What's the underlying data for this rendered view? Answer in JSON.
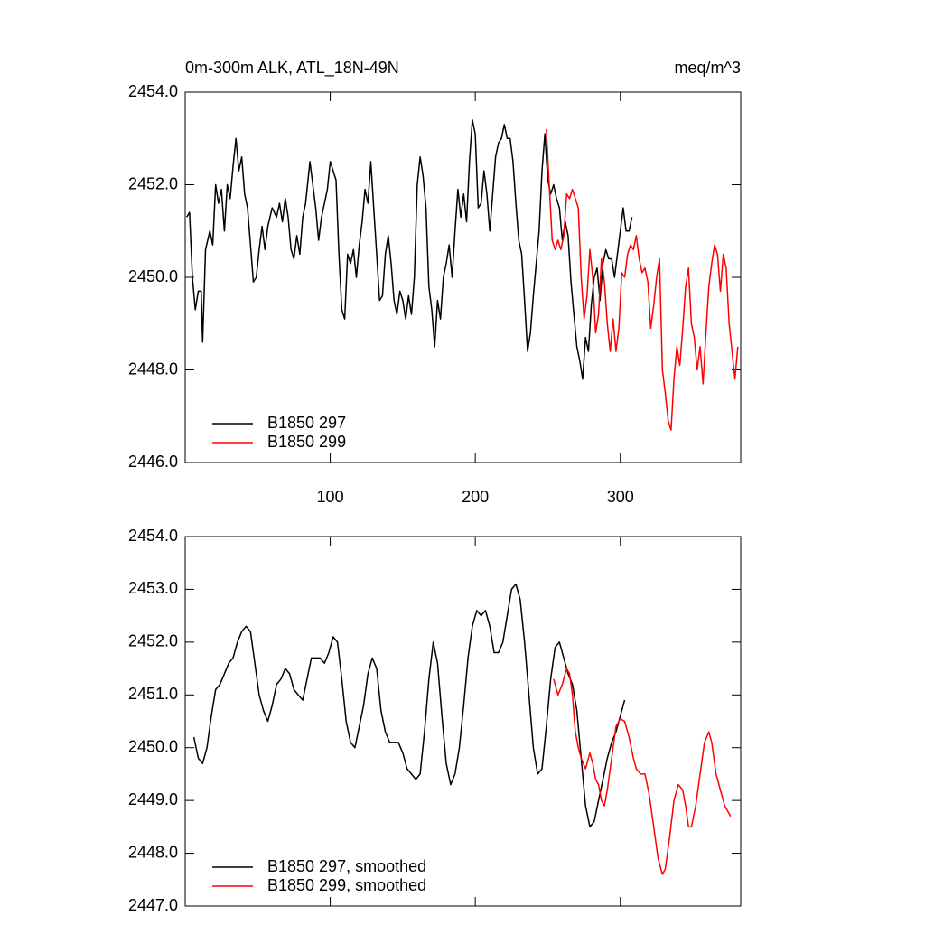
{
  "chart_data": [
    {
      "type": "line",
      "title": "0m-300m ALK, ATL_18N-49N",
      "units": "meq/m^3",
      "xlim": [
        0,
        383
      ],
      "xticks": [
        100,
        200,
        300
      ],
      "show_xtick_labels": true,
      "ylim": [
        2446,
        2454
      ],
      "yticks": [
        {
          "value": 2446,
          "label": "2446.0"
        },
        {
          "value": 2448,
          "label": "2448.0"
        },
        {
          "value": 2450,
          "label": "2450.0"
        },
        {
          "value": 2452,
          "label": "2452.0"
        },
        {
          "value": 2454,
          "label": "2454.0"
        }
      ],
      "legend": "lower left",
      "series": [
        {
          "name": "B1850 297",
          "color": "#000000",
          "x": [
            1,
            3,
            5,
            7,
            9,
            11,
            12,
            14,
            17,
            19,
            21,
            23,
            25,
            27,
            29,
            31,
            33,
            35,
            37,
            39,
            41,
            43,
            45,
            47,
            49,
            51,
            53,
            55,
            57,
            60,
            63,
            65,
            67,
            69,
            71,
            73,
            75,
            77,
            79,
            81,
            83,
            86,
            88,
            90,
            92,
            94,
            96,
            98,
            100,
            102,
            104,
            106,
            108,
            110,
            112,
            114,
            116,
            118,
            120,
            122,
            124,
            126,
            128,
            130,
            132,
            134,
            136,
            138,
            140,
            142,
            144,
            146,
            148,
            150,
            152,
            154,
            156,
            158,
            160,
            162,
            164,
            166,
            168,
            170,
            172,
            174,
            176,
            178,
            180,
            182,
            184,
            186,
            188,
            190,
            192,
            194,
            196,
            198,
            200,
            202,
            204,
            206,
            208,
            210,
            212,
            214,
            216,
            218,
            220,
            222,
            224,
            226,
            228,
            230,
            232,
            234,
            236,
            238,
            240,
            242,
            244,
            246,
            248,
            250,
            252,
            254,
            256,
            258,
            260,
            262,
            264,
            266,
            268,
            270,
            272,
            274,
            276,
            278,
            280,
            282,
            284,
            286,
            288,
            290,
            292,
            294,
            296,
            298,
            300,
            302,
            304,
            306,
            308
          ],
          "values": [
            2451.3,
            2451.4,
            2450.0,
            2449.3,
            2449.7,
            2449.7,
            2448.6,
            2450.6,
            2451.0,
            2450.7,
            2452.0,
            2451.6,
            2451.9,
            2451.0,
            2452.0,
            2451.7,
            2452.4,
            2453.0,
            2452.3,
            2452.6,
            2451.8,
            2451.5,
            2450.7,
            2449.9,
            2450.0,
            2450.6,
            2451.1,
            2450.6,
            2451.1,
            2451.5,
            2451.3,
            2451.6,
            2451.2,
            2451.7,
            2451.3,
            2450.6,
            2450.4,
            2450.9,
            2450.5,
            2451.3,
            2451.6,
            2452.5,
            2452.0,
            2451.5,
            2450.8,
            2451.3,
            2451.6,
            2451.9,
            2452.5,
            2452.3,
            2452.1,
            2450.5,
            2449.3,
            2449.1,
            2450.5,
            2450.3,
            2450.6,
            2450.0,
            2450.7,
            2451.2,
            2451.9,
            2451.6,
            2452.5,
            2451.5,
            2450.5,
            2449.5,
            2449.6,
            2450.5,
            2450.9,
            2450.3,
            2449.5,
            2449.2,
            2449.7,
            2449.5,
            2449.1,
            2449.6,
            2449.2,
            2450.0,
            2452.0,
            2452.6,
            2452.2,
            2451.5,
            2449.8,
            2449.3,
            2448.5,
            2449.5,
            2449.1,
            2450.0,
            2450.3,
            2450.7,
            2450.0,
            2451.0,
            2451.9,
            2451.3,
            2451.8,
            2451.2,
            2452.5,
            2453.4,
            2453.1,
            2451.5,
            2451.6,
            2452.3,
            2451.8,
            2451.0,
            2451.8,
            2452.6,
            2452.9,
            2453.0,
            2453.3,
            2453.0,
            2453.0,
            2452.5,
            2451.6,
            2450.8,
            2450.5,
            2449.5,
            2448.4,
            2448.8,
            2449.6,
            2450.3,
            2451.0,
            2452.3,
            2453.1,
            2452.1,
            2451.8,
            2452.0,
            2451.7,
            2451.5,
            2450.8,
            2451.2,
            2450.9,
            2449.9,
            2449.2,
            2448.5,
            2448.2,
            2447.8,
            2448.7,
            2448.4,
            2449.4,
            2450.0,
            2450.2,
            2449.5,
            2450.3,
            2450.6,
            2450.4,
            2450.4,
            2450.0,
            2450.5,
            2451.0,
            2451.5,
            2451.0,
            2451.0,
            2451.3
          ]
        },
        {
          "name": "B1850 299",
          "color": "#ff0000",
          "x": [
            249,
            251,
            253,
            255,
            257,
            259,
            261,
            263,
            265,
            267,
            269,
            271,
            273,
            275,
            277,
            279,
            281,
            283,
            285,
            287,
            289,
            291,
            293,
            295,
            297,
            299,
            301,
            303,
            305,
            307,
            309,
            311,
            313,
            315,
            317,
            319,
            321,
            323,
            325,
            327,
            329,
            331,
            333,
            335,
            337,
            339,
            341,
            343,
            345,
            347,
            349,
            351,
            353,
            355,
            357,
            359,
            361,
            363,
            365,
            367,
            369,
            371,
            373,
            375,
            377,
            379,
            381
          ],
          "values": [
            2453.2,
            2452.0,
            2450.8,
            2450.6,
            2450.8,
            2450.6,
            2450.9,
            2451.8,
            2451.7,
            2451.9,
            2451.7,
            2451.5,
            2450.0,
            2449.1,
            2449.6,
            2450.6,
            2450.0,
            2448.8,
            2449.2,
            2450.4,
            2449.9,
            2449.0,
            2448.4,
            2449.1,
            2448.4,
            2448.9,
            2450.1,
            2450.0,
            2450.5,
            2450.7,
            2450.6,
            2450.9,
            2450.4,
            2450.1,
            2450.2,
            2449.9,
            2448.9,
            2449.4,
            2450.0,
            2450.4,
            2448.0,
            2447.5,
            2446.9,
            2446.7,
            2447.8,
            2448.5,
            2448.1,
            2448.9,
            2449.8,
            2450.2,
            2449.0,
            2448.7,
            2448.0,
            2448.5,
            2447.7,
            2448.8,
            2449.8,
            2450.3,
            2450.7,
            2450.5,
            2449.7,
            2450.5,
            2450.2,
            2449.0,
            2448.4,
            2447.8,
            2448.5
          ]
        }
      ]
    },
    {
      "type": "line",
      "xlim": [
        0,
        383
      ],
      "xticks": [
        100,
        200,
        300
      ],
      "show_xtick_labels": false,
      "ylim": [
        2447,
        2454
      ],
      "yticks": [
        {
          "value": 2447,
          "label": "2447.0"
        },
        {
          "value": 2448,
          "label": "2448.0"
        },
        {
          "value": 2449,
          "label": "2449.0"
        },
        {
          "value": 2450,
          "label": "2450.0"
        },
        {
          "value": 2451,
          "label": "2451.0"
        },
        {
          "value": 2452,
          "label": "2452.0"
        },
        {
          "value": 2453,
          "label": "2453.0"
        },
        {
          "value": 2454,
          "label": "2454.0"
        }
      ],
      "legend": "lower left",
      "series": [
        {
          "name": "B1850 297, smoothed",
          "color": "#000000",
          "x": [
            6,
            9,
            12,
            15,
            18,
            21,
            24,
            27,
            30,
            33,
            36,
            39,
            42,
            45,
            48,
            51,
            54,
            57,
            60,
            63,
            66,
            69,
            72,
            75,
            78,
            81,
            84,
            87,
            90,
            93,
            96,
            99,
            102,
            105,
            108,
            111,
            114,
            117,
            120,
            123,
            126,
            129,
            132,
            135,
            138,
            141,
            144,
            147,
            150,
            153,
            156,
            159,
            162,
            165,
            168,
            171,
            174,
            177,
            180,
            183,
            186,
            189,
            192,
            195,
            198,
            201,
            204,
            207,
            210,
            213,
            216,
            219,
            222,
            225,
            228,
            231,
            234,
            237,
            240,
            243,
            246,
            249,
            252,
            255,
            258,
            261,
            264,
            267,
            270,
            273,
            276,
            279,
            282,
            285,
            288,
            291,
            294,
            297,
            300,
            303
          ],
          "values": [
            2450.2,
            2449.8,
            2449.7,
            2450.0,
            2450.6,
            2451.1,
            2451.2,
            2451.4,
            2451.6,
            2451.7,
            2452.0,
            2452.2,
            2452.3,
            2452.2,
            2451.6,
            2451.0,
            2450.7,
            2450.5,
            2450.8,
            2451.2,
            2451.3,
            2451.5,
            2451.4,
            2451.1,
            2451.0,
            2450.9,
            2451.3,
            2451.7,
            2451.7,
            2451.7,
            2451.6,
            2451.8,
            2452.1,
            2452.0,
            2451.3,
            2450.5,
            2450.1,
            2450.0,
            2450.4,
            2450.8,
            2451.4,
            2451.7,
            2451.5,
            2450.7,
            2450.3,
            2450.1,
            2450.1,
            2450.1,
            2449.9,
            2449.6,
            2449.5,
            2449.4,
            2449.5,
            2450.3,
            2451.3,
            2452.0,
            2451.6,
            2450.6,
            2449.7,
            2449.3,
            2449.5,
            2450.0,
            2450.8,
            2451.7,
            2452.3,
            2452.6,
            2452.5,
            2452.6,
            2452.3,
            2451.8,
            2451.8,
            2452.0,
            2452.5,
            2453.0,
            2453.1,
            2452.8,
            2452.0,
            2451.0,
            2450.0,
            2449.5,
            2449.6,
            2450.4,
            2451.3,
            2451.9,
            2452.0,
            2451.7,
            2451.4,
            2451.2,
            2450.7,
            2449.8,
            2448.9,
            2448.5,
            2448.6,
            2449.0,
            2449.4,
            2449.8,
            2450.1,
            2450.3,
            2450.6,
            2450.9
          ]
        },
        {
          "name": "B1850 299, smoothed",
          "color": "#ff0000",
          "x": [
            254,
            257,
            260,
            263,
            265,
            267,
            269,
            271,
            273,
            276,
            279,
            281,
            283,
            285,
            287,
            289,
            291,
            293,
            295,
            297,
            300,
            303,
            306,
            309,
            311,
            314,
            317,
            320,
            323,
            326,
            329,
            331,
            334,
            337,
            340,
            343,
            345,
            347,
            349,
            352,
            355,
            358,
            361,
            363,
            366,
            369,
            372,
            376
          ],
          "values": [
            2451.3,
            2451.0,
            2451.2,
            2451.5,
            2451.4,
            2451.0,
            2450.3,
            2450.0,
            2449.8,
            2449.6,
            2449.9,
            2449.7,
            2449.4,
            2449.3,
            2449.0,
            2448.9,
            2449.2,
            2449.6,
            2450.0,
            2450.4,
            2450.55,
            2450.5,
            2450.2,
            2449.8,
            2449.6,
            2449.5,
            2449.5,
            2449.1,
            2448.5,
            2447.9,
            2447.6,
            2447.7,
            2448.3,
            2449.0,
            2449.3,
            2449.2,
            2448.9,
            2448.5,
            2448.5,
            2448.9,
            2449.5,
            2450.1,
            2450.3,
            2450.1,
            2449.5,
            2449.2,
            2448.9,
            2448.7
          ]
        }
      ]
    }
  ]
}
